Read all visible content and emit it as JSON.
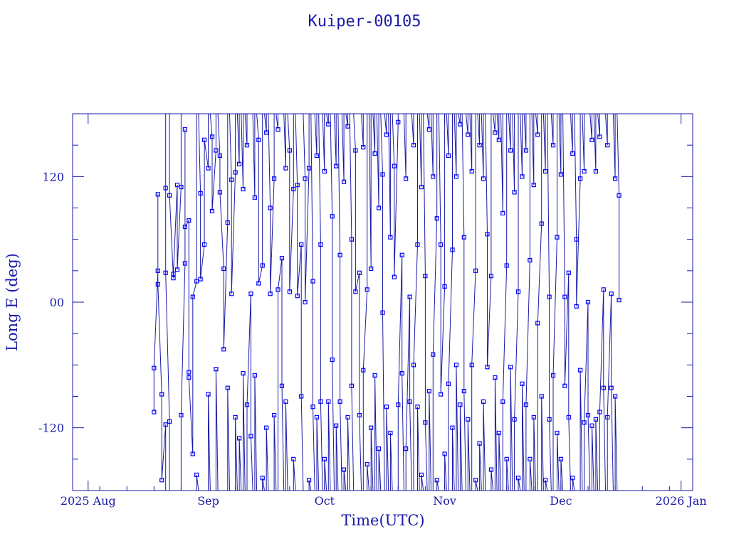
{
  "chart_data": {
    "type": "scatter",
    "title": "Kuiper-00105",
    "xlabel": "Time(UTC)",
    "ylabel": "Long E (deg)",
    "x_axis": {
      "min": "2025-07-28",
      "max": "2026-01-04",
      "ticks": [
        {
          "date": "2025-08-01",
          "label": "2025 Aug"
        },
        {
          "date": "2025-09-01",
          "label": "Sep"
        },
        {
          "date": "2025-10-01",
          "label": "Oct"
        },
        {
          "date": "2025-11-01",
          "label": "Nov"
        },
        {
          "date": "2025-12-01",
          "label": "Dec"
        },
        {
          "date": "2026-01-01",
          "label": "2026 Jan"
        }
      ]
    },
    "y_axis": {
      "min": -180,
      "max": 180,
      "ticks": [
        {
          "value": 120,
          "label": "120"
        },
        {
          "value": 0,
          "label": "00"
        },
        {
          "value": -120,
          "label": "-120"
        }
      ]
    },
    "grid": false,
    "series": [
      {
        "color": "#0000ff",
        "marker": "square",
        "line": true,
        "start": "2025-08-18",
        "end": "2025-12-16",
        "points": [
          [
            "2025-08-18",
            -105
          ],
          [
            "2025-08-18",
            -63
          ],
          [
            "2025-08-19",
            30
          ],
          [
            "2025-08-19",
            103
          ],
          [
            "2025-08-19",
            17
          ],
          [
            "2025-08-20",
            -88
          ],
          [
            "2025-08-20",
            -170
          ],
          [
            "2025-08-21",
            -117
          ],
          [
            "2025-08-21",
            109
          ],
          [
            "2025-08-21",
            28
          ],
          [
            "2025-08-22",
            -114
          ],
          [
            "2025-08-22",
            102
          ],
          [
            "2025-08-23",
            23
          ],
          [
            "2025-08-23",
            27
          ],
          [
            "2025-08-24",
            112
          ],
          [
            "2025-08-24",
            31
          ],
          [
            "2025-08-25",
            110
          ],
          [
            "2025-08-25",
            -108
          ],
          [
            "2025-08-26",
            37
          ],
          [
            "2025-08-26",
            165
          ],
          [
            "2025-08-26",
            72
          ],
          [
            "2025-08-27",
            78
          ],
          [
            "2025-08-27",
            -67
          ],
          [
            "2025-08-27",
            -72
          ],
          [
            "2025-08-28",
            -145
          ],
          [
            "2025-08-28",
            5
          ],
          [
            "2025-08-29",
            20
          ],
          [
            "2025-08-29",
            -165
          ],
          [
            "2025-08-30",
            104
          ],
          [
            "2025-08-30",
            22
          ],
          [
            "2025-08-31",
            55
          ],
          [
            "2025-08-31",
            155
          ],
          [
            "2025-09-01",
            128
          ],
          [
            "2025-09-01",
            -88
          ],
          [
            "2025-09-02",
            158
          ],
          [
            "2025-09-02",
            87
          ],
          [
            "2025-09-03",
            145
          ],
          [
            "2025-09-03",
            -64
          ],
          [
            "2025-09-04",
            140
          ],
          [
            "2025-09-04",
            105
          ],
          [
            "2025-09-05",
            32
          ],
          [
            "2025-09-05",
            -45
          ],
          [
            "2025-09-06",
            76
          ],
          [
            "2025-09-06",
            -82
          ],
          [
            "2025-09-07",
            117
          ],
          [
            "2025-09-07",
            8
          ],
          [
            "2025-09-08",
            124
          ],
          [
            "2025-09-08",
            -110
          ],
          [
            "2025-09-09",
            132
          ],
          [
            "2025-09-09",
            -130
          ],
          [
            "2025-09-10",
            108
          ],
          [
            "2025-09-10",
            -68
          ],
          [
            "2025-09-11",
            150
          ],
          [
            "2025-09-11",
            -98
          ],
          [
            "2025-09-12",
            8
          ],
          [
            "2025-09-12",
            -128
          ],
          [
            "2025-09-13",
            100
          ],
          [
            "2025-09-13",
            -70
          ],
          [
            "2025-09-14",
            155
          ],
          [
            "2025-09-14",
            18
          ],
          [
            "2025-09-15",
            35
          ],
          [
            "2025-09-15",
            -168
          ],
          [
            "2025-09-16",
            162
          ],
          [
            "2025-09-16",
            -120
          ],
          [
            "2025-09-17",
            90
          ],
          [
            "2025-09-17",
            8
          ],
          [
            "2025-09-18",
            118
          ],
          [
            "2025-09-18",
            -108
          ],
          [
            "2025-09-19",
            165
          ],
          [
            "2025-09-19",
            12
          ],
          [
            "2025-09-20",
            42
          ],
          [
            "2025-09-20",
            -80
          ],
          [
            "2025-09-21",
            128
          ],
          [
            "2025-09-21",
            -95
          ],
          [
            "2025-09-22",
            145
          ],
          [
            "2025-09-22",
            10
          ],
          [
            "2025-09-23",
            108
          ],
          [
            "2025-09-23",
            -150
          ],
          [
            "2025-09-24",
            112
          ],
          [
            "2025-09-24",
            6
          ],
          [
            "2025-09-25",
            55
          ],
          [
            "2025-09-25",
            -90
          ],
          [
            "2025-09-26",
            118
          ],
          [
            "2025-09-26",
            0
          ],
          [
            "2025-09-27",
            128
          ],
          [
            "2025-09-27",
            -170
          ],
          [
            "2025-09-28",
            20
          ],
          [
            "2025-09-28",
            -100
          ],
          [
            "2025-09-29",
            140
          ],
          [
            "2025-09-29",
            -110
          ],
          [
            "2025-09-30",
            55
          ],
          [
            "2025-09-30",
            -95
          ],
          [
            "2025-10-01",
            125
          ],
          [
            "2025-10-01",
            -150
          ],
          [
            "2025-10-02",
            170
          ],
          [
            "2025-10-02",
            -95
          ],
          [
            "2025-10-03",
            82
          ],
          [
            "2025-10-03",
            -55
          ],
          [
            "2025-10-04",
            130
          ],
          [
            "2025-10-04",
            -118
          ],
          [
            "2025-10-05",
            45
          ],
          [
            "2025-10-05",
            -95
          ],
          [
            "2025-10-06",
            115
          ],
          [
            "2025-10-06",
            -160
          ],
          [
            "2025-10-07",
            168
          ],
          [
            "2025-10-07",
            -110
          ],
          [
            "2025-10-08",
            60
          ],
          [
            "2025-10-08",
            -80
          ],
          [
            "2025-10-09",
            145
          ],
          [
            "2025-10-09",
            10
          ],
          [
            "2025-10-10",
            28
          ],
          [
            "2025-10-10",
            -108
          ],
          [
            "2025-10-11",
            148
          ],
          [
            "2025-10-11",
            -65
          ],
          [
            "2025-10-12",
            12
          ],
          [
            "2025-10-12",
            -155
          ],
          [
            "2025-10-13",
            32
          ],
          [
            "2025-10-13",
            -120
          ],
          [
            "2025-10-14",
            142
          ],
          [
            "2025-10-14",
            -70
          ],
          [
            "2025-10-15",
            90
          ],
          [
            "2025-10-15",
            -140
          ],
          [
            "2025-10-16",
            122
          ],
          [
            "2025-10-16",
            -10
          ],
          [
            "2025-10-17",
            160
          ],
          [
            "2025-10-17",
            -100
          ],
          [
            "2025-10-18",
            62
          ],
          [
            "2025-10-18",
            -125
          ],
          [
            "2025-10-19",
            130
          ],
          [
            "2025-10-19",
            24
          ],
          [
            "2025-10-20",
            172
          ],
          [
            "2025-10-20",
            -98
          ],
          [
            "2025-10-21",
            45
          ],
          [
            "2025-10-21",
            -68
          ],
          [
            "2025-10-22",
            118
          ],
          [
            "2025-10-22",
            -140
          ],
          [
            "2025-10-23",
            5
          ],
          [
            "2025-10-23",
            -95
          ],
          [
            "2025-10-24",
            150
          ],
          [
            "2025-10-24",
            -60
          ],
          [
            "2025-10-25",
            55
          ],
          [
            "2025-10-25",
            -100
          ],
          [
            "2025-10-26",
            110
          ],
          [
            "2025-10-26",
            -165
          ],
          [
            "2025-10-27",
            25
          ],
          [
            "2025-10-27",
            -115
          ],
          [
            "2025-10-28",
            165
          ],
          [
            "2025-10-28",
            -85
          ],
          [
            "2025-10-29",
            120
          ],
          [
            "2025-10-29",
            -50
          ],
          [
            "2025-10-30",
            80
          ],
          [
            "2025-10-30",
            -170
          ],
          [
            "2025-10-31",
            55
          ],
          [
            "2025-10-31",
            -88
          ],
          [
            "2025-11-01",
            15
          ],
          [
            "2025-11-01",
            -145
          ],
          [
            "2025-11-02",
            140
          ],
          [
            "2025-11-02",
            -78
          ],
          [
            "2025-11-03",
            50
          ],
          [
            "2025-11-03",
            -120
          ],
          [
            "2025-11-04",
            120
          ],
          [
            "2025-11-04",
            -60
          ],
          [
            "2025-11-05",
            170
          ],
          [
            "2025-11-05",
            -98
          ],
          [
            "2025-11-06",
            62
          ],
          [
            "2025-11-06",
            -85
          ],
          [
            "2025-11-07",
            160
          ],
          [
            "2025-11-07",
            -112
          ],
          [
            "2025-11-08",
            125
          ],
          [
            "2025-11-08",
            -60
          ],
          [
            "2025-11-09",
            30
          ],
          [
            "2025-11-09",
            -170
          ],
          [
            "2025-11-10",
            150
          ],
          [
            "2025-11-10",
            -135
          ],
          [
            "2025-11-11",
            118
          ],
          [
            "2025-11-11",
            -95
          ],
          [
            "2025-11-12",
            65
          ],
          [
            "2025-11-12",
            -62
          ],
          [
            "2025-11-13",
            25
          ],
          [
            "2025-11-13",
            -160
          ],
          [
            "2025-11-14",
            162
          ],
          [
            "2025-11-14",
            -72
          ],
          [
            "2025-11-15",
            155
          ],
          [
            "2025-11-15",
            -125
          ],
          [
            "2025-11-16",
            85
          ],
          [
            "2025-11-16",
            -95
          ],
          [
            "2025-11-17",
            35
          ],
          [
            "2025-11-17",
            -150
          ],
          [
            "2025-11-18",
            145
          ],
          [
            "2025-11-18",
            -62
          ],
          [
            "2025-11-19",
            105
          ],
          [
            "2025-11-19",
            -112
          ],
          [
            "2025-11-20",
            10
          ],
          [
            "2025-11-20",
            -168
          ],
          [
            "2025-11-21",
            120
          ],
          [
            "2025-11-21",
            -78
          ],
          [
            "2025-11-22",
            145
          ],
          [
            "2025-11-22",
            -98
          ],
          [
            "2025-11-23",
            40
          ],
          [
            "2025-11-23",
            -150
          ],
          [
            "2025-11-24",
            112
          ],
          [
            "2025-11-24",
            -110
          ],
          [
            "2025-11-25",
            160
          ],
          [
            "2025-11-25",
            -20
          ],
          [
            "2025-11-26",
            75
          ],
          [
            "2025-11-26",
            -90
          ],
          [
            "2025-11-27",
            125
          ],
          [
            "2025-11-27",
            -170
          ],
          [
            "2025-11-28",
            5
          ],
          [
            "2025-11-28",
            -112
          ],
          [
            "2025-11-29",
            150
          ],
          [
            "2025-11-29",
            -70
          ],
          [
            "2025-11-30",
            62
          ],
          [
            "2025-11-30",
            -125
          ],
          [
            "2025-12-01",
            122
          ],
          [
            "2025-12-01",
            -150
          ],
          [
            "2025-12-02",
            5
          ],
          [
            "2025-12-02",
            -80
          ],
          [
            "2025-12-03",
            28
          ],
          [
            "2025-12-03",
            -110
          ],
          [
            "2025-12-04",
            142
          ],
          [
            "2025-12-04",
            -168
          ],
          [
            "2025-12-05",
            60
          ],
          [
            "2025-12-05",
            -4
          ],
          [
            "2025-12-06",
            118
          ],
          [
            "2025-12-06",
            -65
          ],
          [
            "2025-12-07",
            125
          ],
          [
            "2025-12-07",
            -115
          ],
          [
            "2025-12-08",
            0
          ],
          [
            "2025-12-08",
            -108
          ],
          [
            "2025-12-09",
            155
          ],
          [
            "2025-12-09",
            -118
          ],
          [
            "2025-12-10",
            125
          ],
          [
            "2025-12-10",
            -112
          ],
          [
            "2025-12-11",
            158
          ],
          [
            "2025-12-11",
            -105
          ],
          [
            "2025-12-12",
            12
          ],
          [
            "2025-12-12",
            -82
          ],
          [
            "2025-12-13",
            150
          ],
          [
            "2025-12-13",
            -110
          ],
          [
            "2025-12-14",
            8
          ],
          [
            "2025-12-14",
            -82
          ],
          [
            "2025-12-15",
            118
          ],
          [
            "2025-12-15",
            -90
          ],
          [
            "2025-12-16",
            102
          ],
          [
            "2025-12-16",
            2
          ]
        ]
      }
    ]
  }
}
